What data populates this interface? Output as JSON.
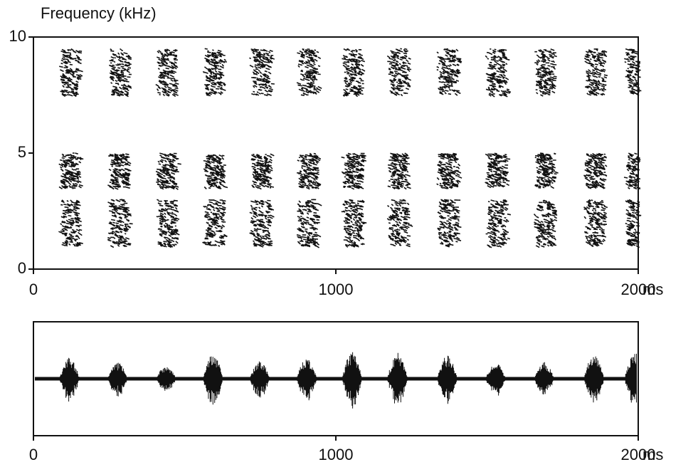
{
  "chart_data": [
    {
      "type": "spectrogram",
      "y_label": "Frequency (kHz)",
      "x_unit": "ms",
      "xlim": [
        0,
        2000
      ],
      "xticks": [
        0,
        1000,
        2000
      ],
      "ylim": [
        0,
        10
      ],
      "yticks": [
        0,
        5,
        10
      ],
      "syllables": [
        120,
        280,
        440,
        595,
        750,
        905,
        1055,
        1205,
        1370,
        1530,
        1690,
        1855,
        1990
      ],
      "bands": [
        [
          1,
          3
        ],
        [
          3.5,
          5
        ],
        [
          7.5,
          9.5
        ]
      ],
      "color": "#111111"
    },
    {
      "type": "waveform",
      "x_unit": "ms",
      "xlim": [
        0,
        2000
      ],
      "xticks": [
        0,
        1000,
        2000
      ],
      "syllables": [
        120,
        280,
        440,
        595,
        750,
        905,
        1055,
        1205,
        1370,
        1530,
        1690,
        1855,
        1990
      ],
      "color": "#111111"
    }
  ]
}
